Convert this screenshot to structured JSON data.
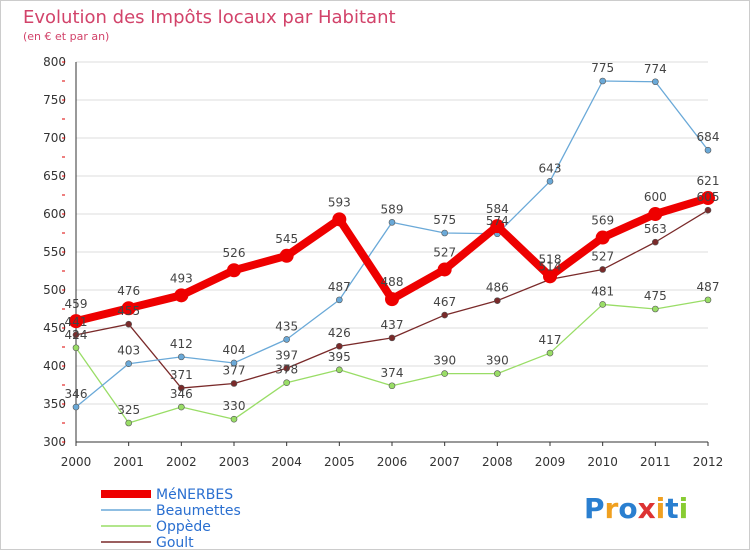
{
  "chart_data": {
    "type": "line",
    "title": "Evolution des Impôts locaux par Habitant",
    "subtitle": "(en € et par an)",
    "x": [
      "2000",
      "2001",
      "2002",
      "2003",
      "2004",
      "2005",
      "2006",
      "2007",
      "2008",
      "2009",
      "2010",
      "2011",
      "2012"
    ],
    "ylim": [
      300,
      800
    ],
    "yticks": [
      300,
      350,
      400,
      450,
      500,
      550,
      600,
      650,
      700,
      750,
      800
    ],
    "grid": "horizontal",
    "legend_position": "bottom-left",
    "series": [
      {
        "name": "MéNERBES",
        "color": "#ee0000",
        "values": [
          459,
          476,
          493,
          526,
          545,
          593,
          488,
          527,
          584,
          518,
          569,
          600,
          621
        ]
      },
      {
        "name": "Beaumettes",
        "color": "#6aa9d8",
        "values": [
          346,
          403,
          412,
          404,
          435,
          487,
          589,
          575,
          574,
          643,
          775,
          774,
          684
        ]
      },
      {
        "name": "Oppède",
        "color": "#99dd66",
        "values": [
          424,
          325,
          346,
          330,
          378,
          395,
          374,
          390,
          390,
          417,
          481,
          475,
          487
        ]
      },
      {
        "name": "Goult",
        "color": "#7a2a2a",
        "values": [
          441,
          455,
          371,
          377,
          397,
          426,
          437,
          467,
          486,
          514,
          527,
          563,
          605
        ]
      }
    ]
  },
  "logo": {
    "text": "Proxiti",
    "colors": [
      "#2a7fd0",
      "#f0a020",
      "#2a7fd0",
      "#dd3333",
      "#f0a020",
      "#2a7fd0",
      "#88cc33"
    ]
  }
}
